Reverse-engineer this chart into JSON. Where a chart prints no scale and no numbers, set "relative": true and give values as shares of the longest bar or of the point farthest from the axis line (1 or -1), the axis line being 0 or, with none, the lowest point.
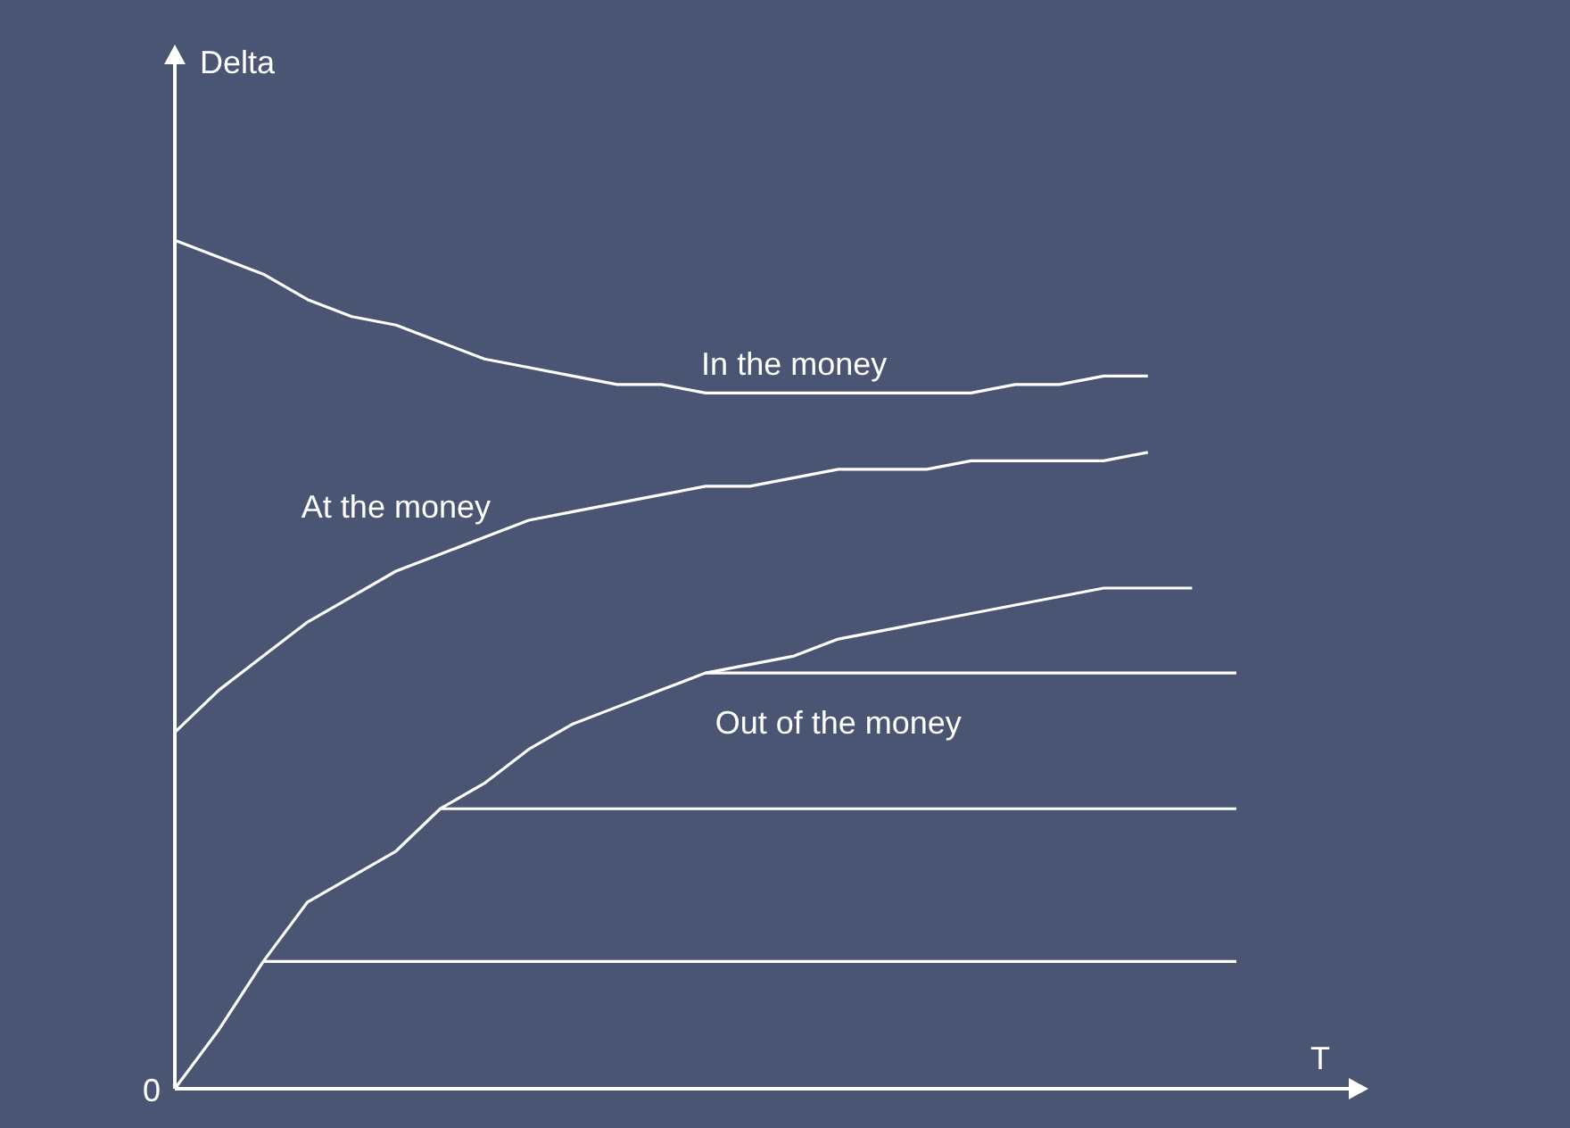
{
  "chart_data": {
    "type": "line",
    "relative": true,
    "xlabel": "T",
    "ylabel": "Delta",
    "tick_labels": false,
    "grid": false,
    "legend": false,
    "marker": "none",
    "line_style": "solid",
    "annotations": [
      "0"
    ],
    "categories": [
      null,
      null,
      null,
      null,
      null,
      null,
      null,
      null,
      null,
      null,
      null,
      null,
      null,
      null,
      null,
      null,
      null,
      null,
      null,
      null,
      null,
      null,
      null,
      null,
      null
    ],
    "series": [
      {
        "name": "In the money",
        "color": "#ffffff",
        "values": [
          1.0,
          0.98,
          0.96,
          0.93,
          0.91,
          0.9,
          0.88,
          0.86,
          0.85,
          0.84,
          0.83,
          0.83,
          0.82,
          0.82,
          0.82,
          0.82,
          0.82,
          0.82,
          0.82,
          0.83,
          0.83,
          0.84,
          0.84,
          null,
          null
        ]
      },
      {
        "name": "At the money",
        "color": "#ffffff",
        "values": [
          0.42,
          0.47,
          0.51,
          0.55,
          0.58,
          0.61,
          0.63,
          0.65,
          0.67,
          0.68,
          0.69,
          0.7,
          0.71,
          0.71,
          0.72,
          0.73,
          0.73,
          0.73,
          0.74,
          0.74,
          0.74,
          0.74,
          0.75,
          null,
          null
        ]
      },
      {
        "name": "Out of the money",
        "color": "#ffffff",
        "values": [
          0,
          0.07,
          0.15,
          0.22,
          0.25,
          0.28,
          0.33,
          0.36,
          0.4,
          0.43,
          0.45,
          0.47,
          0.49,
          0.5,
          0.51,
          0.53,
          0.54,
          0.55,
          0.56,
          0.57,
          0.58,
          0.59,
          0.59,
          0.59,
          null
        ]
      },
      {
        "color": "#ffffff",
        "values": [
          null,
          null,
          null,
          null,
          null,
          null,
          null,
          null,
          null,
          null,
          null,
          null,
          0.49,
          0.49,
          0.49,
          0.49,
          0.49,
          0.49,
          0.49,
          0.49,
          0.49,
          0.49,
          0.49,
          0.49,
          0.49
        ]
      },
      {
        "color": "#ffffff",
        "values": [
          null,
          null,
          null,
          null,
          null,
          null,
          0.33,
          0.33,
          0.33,
          0.33,
          0.33,
          0.33,
          0.33,
          0.33,
          0.33,
          0.33,
          0.33,
          0.33,
          0.33,
          0.33,
          0.33,
          0.33,
          0.33,
          0.33,
          0.33
        ]
      },
      {
        "color": "#ffffff",
        "values": [
          null,
          null,
          0.15,
          0.15,
          0.15,
          0.15,
          0.15,
          0.15,
          0.15,
          0.15,
          0.15,
          0.15,
          0.15,
          0.15,
          0.15,
          0.15,
          0.15,
          0.15,
          0.15,
          0.15,
          0.15,
          0.15,
          0.15,
          0.15,
          0.15
        ]
      }
    ]
  }
}
